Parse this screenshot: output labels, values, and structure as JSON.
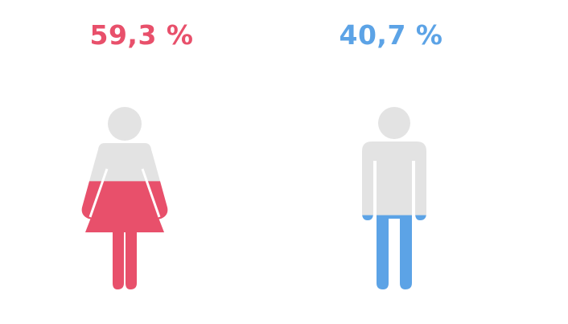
{
  "chart_data": {
    "type": "pictogram",
    "items": [
      {
        "key": "female",
        "icon": "female-icon",
        "label": "59,3 %",
        "value": 59.3,
        "color": "#e8506b"
      },
      {
        "key": "male",
        "icon": "male-icon",
        "label": "40,7 %",
        "value": 40.7,
        "color": "#5ca3e6"
      }
    ],
    "empty_color": "#e3e3e3"
  }
}
